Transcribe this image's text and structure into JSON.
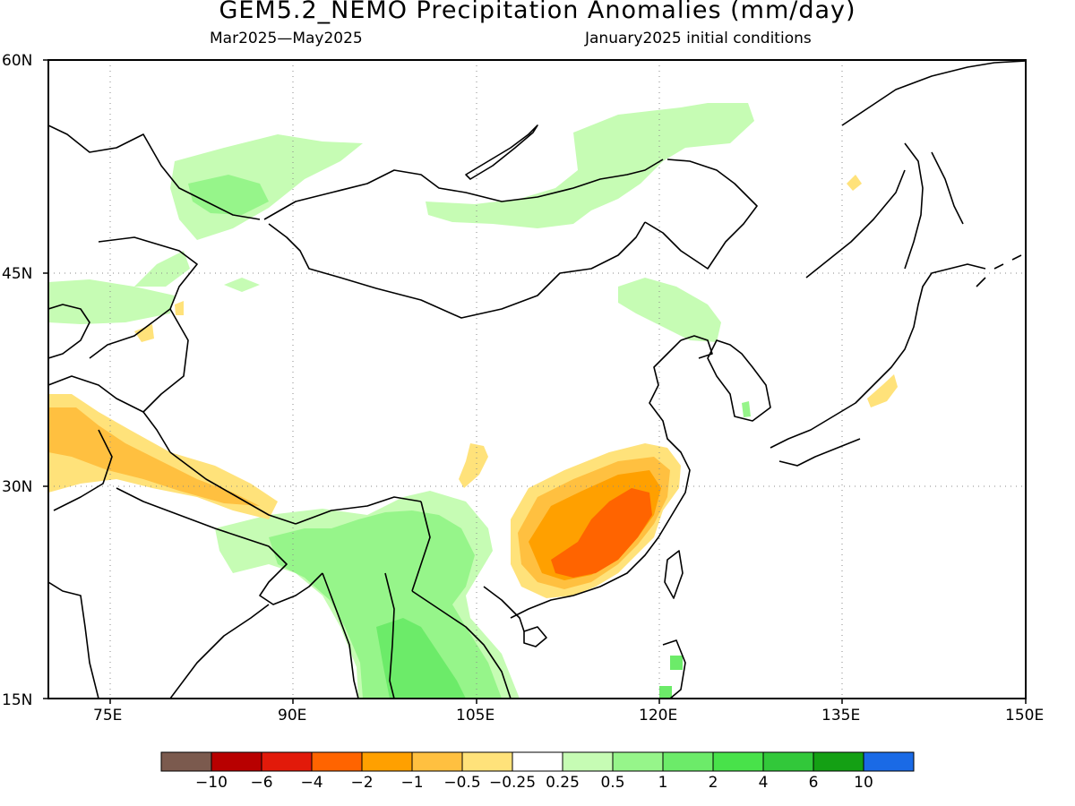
{
  "header": {
    "title": "GEM5.2_NEMO Precipitation Anomalies (mm/day)",
    "period": "Mar2025—May2025",
    "init": "January2025 initial conditions"
  },
  "axes": {
    "lat_labels": [
      "60N",
      "45N",
      "30N",
      "15N"
    ],
    "lon_labels": [
      "75E",
      "90E",
      "105E",
      "120E",
      "135E",
      "150E"
    ]
  },
  "colorbar": {
    "colors": [
      "#7b5a4e",
      "#b80000",
      "#e21a0a",
      "#ff6400",
      "#ffa000",
      "#ffc040",
      "#ffe27a",
      "#ffffff",
      "#c6fcb4",
      "#96f58a",
      "#6ceb69",
      "#48e24a",
      "#32c83a",
      "#14a014",
      "#1a6ae6"
    ],
    "labels": [
      "−10",
      "−6",
      "−4",
      "−2",
      "−1",
      "−0.5",
      "−0.25",
      "0.25",
      "0.5",
      "1",
      "2",
      "4",
      "6",
      "10"
    ]
  }
}
